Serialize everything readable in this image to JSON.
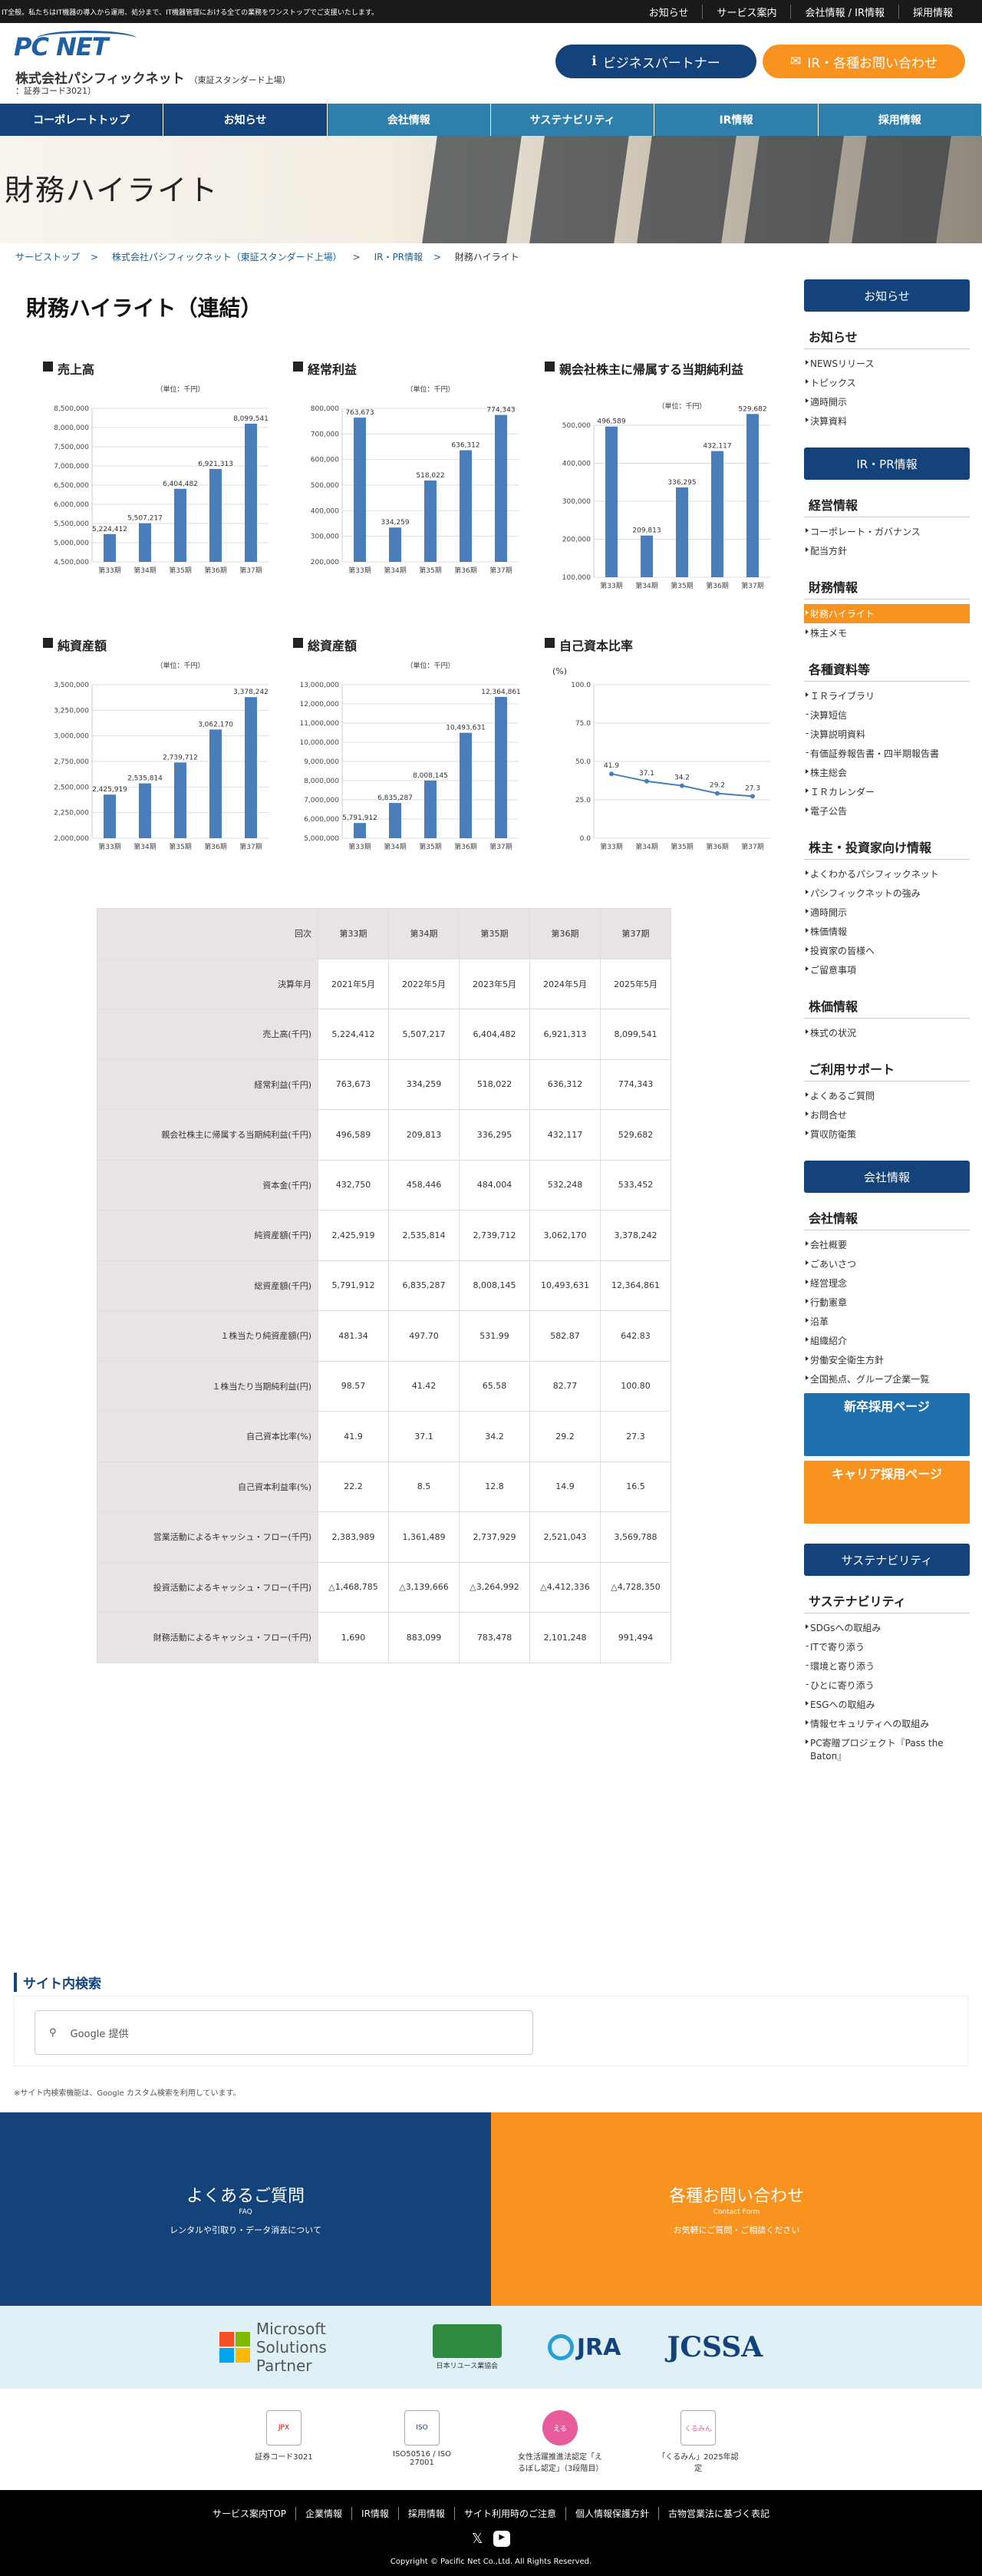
{
  "topbar": {
    "tagline": "IT全般。私たちはIT機器の導入から運用、処分まで、IT機器管理における全ての業務をワンストップでご支援いたします。",
    "links": [
      "お知らせ",
      "サービス案内",
      "会社情報 / IR情報",
      "採用情報"
    ]
  },
  "header": {
    "logo": "PC NET",
    "company": "株式会社パシフィックネット",
    "market": "（東証スタンダード上場）",
    "code": "：証券コード3021）",
    "partner_btn": "ビジネスパートナー",
    "ir_btn": "IR・各種お問い合わせ"
  },
  "nav": [
    "コーポレートトップ",
    "お知らせ",
    "会社情報",
    "サステナビリティ",
    "IR情報",
    "採用情報"
  ],
  "hero_title": "財務ハイライト",
  "breadcrumb": [
    "サービストップ",
    "株式会社パシフィックネット（東証スタンダード上場）",
    "IR・PR情報",
    "財務ハイライト"
  ],
  "page_title": "財務ハイライト（連結）",
  "unit_label": "（単位：千円）",
  "pct_label": "(%)",
  "chart_data": [
    {
      "type": "bar",
      "title": "売上高",
      "categories": [
        "第33期",
        "第34期",
        "第35期",
        "第36期",
        "第37期"
      ],
      "values": [
        5224412,
        5507217,
        6404482,
        6921313,
        8099541
      ],
      "ylim": [
        4500000,
        8500000
      ],
      "yticks": [
        4500000,
        5000000,
        5500000,
        6000000,
        6500000,
        7000000,
        7500000,
        8000000,
        8500000
      ]
    },
    {
      "type": "bar",
      "title": "経常利益",
      "categories": [
        "第33期",
        "第34期",
        "第35期",
        "第36期",
        "第37期"
      ],
      "values": [
        763673,
        334259,
        518022,
        636312,
        774343
      ],
      "ylim": [
        200000,
        800000
      ],
      "yticks": [
        200000,
        300000,
        400000,
        500000,
        600000,
        700000,
        800000
      ]
    },
    {
      "type": "bar",
      "title": "親会社株主に帰属する当期純利益",
      "categories": [
        "第33期",
        "第34期",
        "第35期",
        "第36期",
        "第37期"
      ],
      "values": [
        496589,
        209813,
        336295,
        432117,
        529682
      ],
      "ylim": [
        100000,
        500000
      ],
      "yticks": [
        100000,
        200000,
        300000,
        400000,
        500000
      ]
    },
    {
      "type": "bar",
      "title": "純資産額",
      "categories": [
        "第33期",
        "第34期",
        "第35期",
        "第36期",
        "第37期"
      ],
      "values": [
        2425919,
        2535814,
        2739712,
        3062170,
        3378242
      ],
      "ylim": [
        2000000,
        3500000
      ],
      "yticks": [
        2000000,
        2250000,
        2500000,
        2750000,
        3000000,
        3250000,
        3500000
      ]
    },
    {
      "type": "bar",
      "title": "総資産額",
      "categories": [
        "第33期",
        "第34期",
        "第35期",
        "第36期",
        "第37期"
      ],
      "values": [
        5791912,
        6835287,
        8008145,
        10493631,
        12364861
      ],
      "ylim": [
        5000000,
        13000000
      ],
      "yticks": [
        5000000,
        6000000,
        7000000,
        8000000,
        9000000,
        10000000,
        11000000,
        12000000,
        13000000
      ]
    },
    {
      "type": "line",
      "title": "自己資本比率",
      "categories": [
        "第33期",
        "第34期",
        "第35期",
        "第36期",
        "第37期"
      ],
      "values": [
        41.9,
        37.1,
        34.2,
        29.2,
        27.3
      ],
      "ylim": [
        0,
        100
      ],
      "yticks": [
        0,
        25,
        50,
        75,
        100
      ]
    }
  ],
  "table": {
    "rows": [
      [
        "回次",
        "第33期",
        "第34期",
        "第35期",
        "第36期",
        "第37期"
      ],
      [
        "決算年月",
        "2021年5月",
        "2022年5月",
        "2023年5月",
        "2024年5月",
        "2025年5月"
      ],
      [
        "売上高(千円)",
        "5,224,412",
        "5,507,217",
        "6,404,482",
        "6,921,313",
        "8,099,541"
      ],
      [
        "経常利益(千円)",
        "763,673",
        "334,259",
        "518,022",
        "636,312",
        "774,343"
      ],
      [
        "親会社株主に帰属する当期純利益(千円)",
        "496,589",
        "209,813",
        "336,295",
        "432,117",
        "529,682"
      ],
      [
        "資本金(千円)",
        "432,750",
        "458,446",
        "484,004",
        "532,248",
        "533,452"
      ],
      [
        "純資産額(千円)",
        "2,425,919",
        "2,535,814",
        "2,739,712",
        "3,062,170",
        "3,378,242"
      ],
      [
        "総資産額(千円)",
        "5,791,912",
        "6,835,287",
        "8,008,145",
        "10,493,631",
        "12,364,861"
      ],
      [
        "１株当たり純資産額(円)",
        "481.34",
        "497.70",
        "531.99",
        "582.87",
        "642.83"
      ],
      [
        "１株当たり当期純利益(円)",
        "98.57",
        "41.42",
        "65.58",
        "82.77",
        "100.80"
      ],
      [
        "自己資本比率(%)",
        "41.9",
        "37.1",
        "34.2",
        "29.2",
        "27.3"
      ],
      [
        "自己資本利益率(%)",
        "22.2",
        "8.5",
        "12.8",
        "14.9",
        "16.5"
      ],
      [
        "営業活動によるキャッシュ・フロー(千円)",
        "2,383,989",
        "1,361,489",
        "2,737,929",
        "2,521,043",
        "3,569,788"
      ],
      [
        "投資活動によるキャッシュ・フロー(千円)",
        "△1,468,785",
        "△3,139,666",
        "△3,264,992",
        "△4,412,336",
        "△4,728,350"
      ],
      [
        "財務活動によるキャッシュ・フロー(千円)",
        "1,690",
        "883,099",
        "783,478",
        "2,101,248",
        "991,494"
      ]
    ]
  },
  "sidebar": {
    "news_box": "お知らせ",
    "news_head": "お知らせ",
    "news_items": [
      "NEWSリリース",
      "トピックス",
      "適時開示",
      "決算資料"
    ],
    "ir_box": "IR・PR情報",
    "mgmt_head": "経営情報",
    "mgmt_items": [
      "コーポレート・ガバナンス",
      "配当方針"
    ],
    "fin_head": "財務情報",
    "fin_items": [
      "財務ハイライト",
      "株主メモ"
    ],
    "docs_head": "各種資料等",
    "docs_items": [
      "ＩＲライブラリ",
      "決算短信",
      "決算説明資料",
      "有価証券報告書・四半期報告書",
      "株主総会",
      "ＩＲカレンダー",
      "電子公告"
    ],
    "inv_head": "株主・投資家向け情報",
    "inv_items": [
      "よくわかるパシフィックネット",
      "パシフィックネットの強み",
      "適時開示",
      "株価情報",
      "投資家の皆様へ",
      "ご留意事項"
    ],
    "stock_head": "株価情報",
    "stock_items": [
      "株式の状況"
    ],
    "support_head": "ご利用サポート",
    "support_items": [
      "よくあるご質問",
      "お問合せ",
      "買収防衛策"
    ],
    "company_box": "会社情報",
    "company_head": "会社情報",
    "company_items": [
      "会社概要",
      "ごあいさつ",
      "経営理念",
      "行動憲章",
      "沿革",
      "組織紹介",
      "労働安全衛生方針",
      "全国拠点、グループ企業一覧"
    ],
    "recruit_new": "新卒採用ページ",
    "recruit_career": "キャリア採用ページ",
    "sus_box": "サステナビリティ",
    "sus_head": "サステナビリティ",
    "sus_items": [
      "SDGsへの取組み",
      "ITで寄り添う",
      "環境と寄り添う",
      "ひとに寄り添う",
      "ESGへの取組み",
      "情報セキュリティへの取組み",
      "PC寄贈プロジェクト『Pass the Baton』"
    ]
  },
  "search": {
    "title": "サイト内検索",
    "placeholder": "Google 提供",
    "note": "※サイト内検索機能は、Google カスタム検索を利用しています。"
  },
  "faq": {
    "title": "よくあるご質問",
    "en": "FAQ",
    "desc": "レンタルや引取り・データ消去について"
  },
  "contact": {
    "title": "各種お問い合わせ",
    "en": "Contact Form",
    "desc": "お気軽にご質問・ご相談ください"
  },
  "partners": [
    "Microsoft Solutions Partner",
    "日本リユース業協会",
    "JRA",
    "JCSSA"
  ],
  "certs": [
    {
      "label": "証券コード3021",
      "icon": "JPX"
    },
    {
      "label": "ISO50516 / ISO 27001",
      "icon": "ISO"
    },
    {
      "label": "女性活躍推進法認定「えるぼし認定」（3段階目）",
      "icon": "える"
    },
    {
      "label": "「くるみん」2025年認定",
      "icon": "くるみん"
    }
  ],
  "footer": {
    "links": [
      "サービス案内TOP",
      "企業情報",
      "IR情報",
      "採用情報",
      "サイト利用時のご注意",
      "個人情報保護方針",
      "古物営業法に基づく表記"
    ],
    "copyright": "Copyright © Pacific Net Co.,Ltd. All Rights Reserved."
  },
  "colors": {
    "navy": "#14427a",
    "orange": "#f7931e",
    "bar": "#4a7ebb",
    "teal": "#2e7fab"
  }
}
